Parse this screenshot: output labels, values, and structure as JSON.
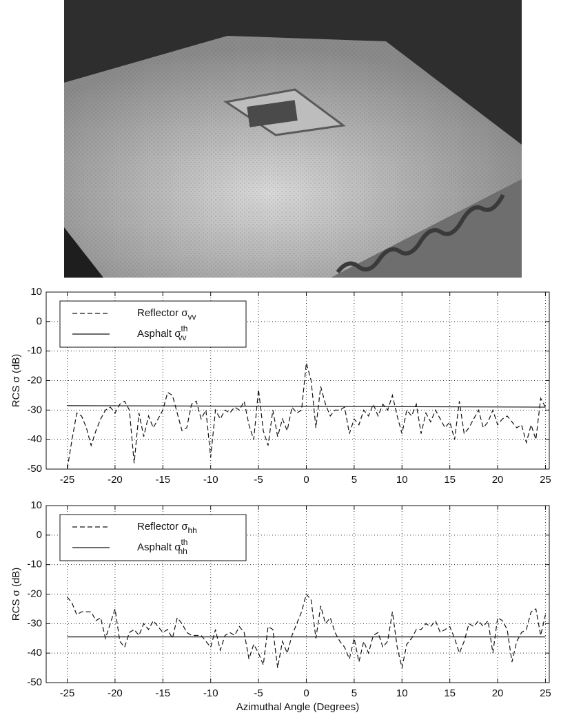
{
  "chart_data": [
    {
      "type": "line",
      "ylabel": "RCS σ (dB)",
      "x": [
        -25,
        -24.5,
        -24,
        -23.5,
        -23,
        -22.5,
        -22,
        -21.5,
        -21,
        -20.5,
        -20,
        -19.5,
        -19,
        -18.5,
        -18,
        -17.5,
        -17,
        -16.5,
        -16,
        -15.5,
        -15,
        -14.5,
        -14,
        -13.5,
        -13,
        -12.5,
        -12,
        -11.5,
        -11,
        -10.5,
        -10,
        -9.5,
        -9,
        -8.5,
        -8,
        -7.5,
        -7,
        -6.5,
        -6,
        -5.5,
        -5,
        -4.5,
        -4,
        -3.5,
        -3,
        -2.5,
        -2,
        -1.5,
        -1,
        -0.5,
        0,
        0.5,
        1,
        1.5,
        2,
        2.5,
        3,
        3.5,
        4,
        4.5,
        5,
        5.5,
        6,
        6.5,
        7,
        7.5,
        8,
        8.5,
        9,
        9.5,
        10,
        10.5,
        11,
        11.5,
        12,
        12.5,
        13,
        13.5,
        14,
        14.5,
        15,
        15.5,
        16,
        16.5,
        17,
        17.5,
        18,
        18.5,
        19,
        19.5,
        20,
        20.5,
        21,
        21.5,
        22,
        22.5,
        23,
        23.5,
        24,
        24.5,
        25
      ],
      "series": [
        {
          "name": "Reflector σ",
          "subscript": "vv",
          "color": "#111111",
          "linestyle": "dashed",
          "values": [
            -50,
            -40,
            -31,
            -32,
            -36,
            -42,
            -37,
            -33,
            -30,
            -29,
            -31,
            -28,
            -27,
            -30,
            -48,
            -31,
            -39,
            -32,
            -36,
            -33,
            -30,
            -24,
            -25,
            -31,
            -37,
            -36,
            -28,
            -27,
            -33,
            -30,
            -46,
            -30,
            -33,
            -30,
            -31,
            -29,
            -30,
            -27,
            -35,
            -40,
            -23,
            -37,
            -42,
            -30,
            -39,
            -33,
            -37,
            -29,
            -31,
            -30,
            -14,
            -20,
            -36,
            -22,
            -28,
            -32,
            -30,
            -30,
            -29,
            -38,
            -33,
            -35,
            -30,
            -32,
            -28,
            -32,
            -28,
            -30,
            -25,
            -32,
            -38,
            -30,
            -32,
            -28,
            -38,
            -31,
            -34,
            -30,
            -33,
            -36,
            -34,
            -40,
            -27,
            -38,
            -36,
            -33,
            -30,
            -36,
            -34,
            -30,
            -35,
            -33,
            -32,
            -34,
            -36,
            -35,
            -41,
            -35,
            -40,
            -26,
            -29
          ]
        },
        {
          "name": "Asphalt σ",
          "superscript": "th",
          "subscript": "vv",
          "color": "#111111",
          "linestyle": "solid",
          "x": [
            -25,
            25
          ],
          "values": [
            -28.5,
            -29
          ]
        }
      ],
      "xlim": [
        -27.2,
        25.4
      ],
      "xticks": [
        -25,
        -20,
        -15,
        -10,
        -5,
        0,
        5,
        10,
        15,
        20,
        25
      ],
      "ylim": [
        -50,
        10
      ],
      "yticks": [
        -50,
        -40,
        -30,
        -20,
        -10,
        0,
        10
      ],
      "grid": true,
      "legend": "upper left"
    },
    {
      "type": "line",
      "ylabel": "RCS σ (dB)",
      "xlabel": "Azimuthal Angle (Degrees)",
      "x": [
        -25,
        -24.5,
        -24,
        -23.5,
        -23,
        -22.5,
        -22,
        -21.5,
        -21,
        -20.5,
        -20,
        -19.5,
        -19,
        -18.5,
        -18,
        -17.5,
        -17,
        -16.5,
        -16,
        -15.5,
        -15,
        -14.5,
        -14,
        -13.5,
        -13,
        -12.5,
        -12,
        -11.5,
        -11,
        -10.5,
        -10,
        -9.5,
        -9,
        -8.5,
        -8,
        -7.5,
        -7,
        -6.5,
        -6,
        -5.5,
        -5,
        -4.5,
        -4,
        -3.5,
        -3,
        -2.5,
        -2,
        -1.5,
        -1,
        -0.5,
        0,
        0.5,
        1,
        1.5,
        2,
        2.5,
        3,
        3.5,
        4,
        4.5,
        5,
        5.5,
        6,
        6.5,
        7,
        7.5,
        8,
        8.5,
        9,
        9.5,
        10,
        10.5,
        11,
        11.5,
        12,
        12.5,
        13,
        13.5,
        14,
        14.5,
        15,
        15.5,
        16,
        16.5,
        17,
        17.5,
        18,
        18.5,
        19,
        19.5,
        20,
        20.5,
        21,
        21.5,
        22,
        22.5,
        23,
        23.5,
        24,
        24.5,
        25
      ],
      "series": [
        {
          "name": "Reflector σ",
          "subscript": "hh",
          "color": "#111111",
          "linestyle": "dashed",
          "values": [
            -21,
            -23,
            -27,
            -26,
            -26,
            -26,
            -29,
            -28,
            -35,
            -30,
            -25,
            -36,
            -38,
            -33,
            -32,
            -34,
            -30,
            -32,
            -29,
            -31,
            -33,
            -32,
            -35,
            -28,
            -30,
            -33,
            -34,
            -34,
            -34,
            -36,
            -38,
            -32,
            -39,
            -34,
            -33,
            -34,
            -31,
            -33,
            -42,
            -37,
            -40,
            -44,
            -31,
            -32,
            -45,
            -36,
            -40,
            -34,
            -30,
            -26,
            -20,
            -22,
            -35,
            -24,
            -30,
            -28,
            -33,
            -36,
            -38,
            -42,
            -35,
            -43,
            -36,
            -40,
            -34,
            -33,
            -38,
            -36,
            -26,
            -38,
            -45,
            -37,
            -35,
            -32,
            -32,
            -30,
            -31,
            -29,
            -33,
            -32,
            -31,
            -35,
            -40,
            -36,
            -30,
            -31,
            -29,
            -31,
            -29,
            -40,
            -28,
            -29,
            -32,
            -43,
            -36,
            -33,
            -32,
            -26,
            -25,
            -34,
            -27
          ]
        },
        {
          "name": "Asphalt σ",
          "superscript": "th",
          "subscript": "hh",
          "color": "#111111",
          "linestyle": "solid",
          "x": [
            -25,
            25
          ],
          "values": [
            -34.5,
            -34.5
          ]
        }
      ],
      "xlim": [
        -27.2,
        25.4
      ],
      "xticks": [
        -25,
        -20,
        -15,
        -10,
        -5,
        0,
        5,
        10,
        15,
        20,
        25
      ],
      "ylim": [
        -50,
        10
      ],
      "yticks": [
        -50,
        -40,
        -30,
        -20,
        -10,
        0,
        10
      ],
      "grid": true,
      "legend": "upper left"
    }
  ]
}
